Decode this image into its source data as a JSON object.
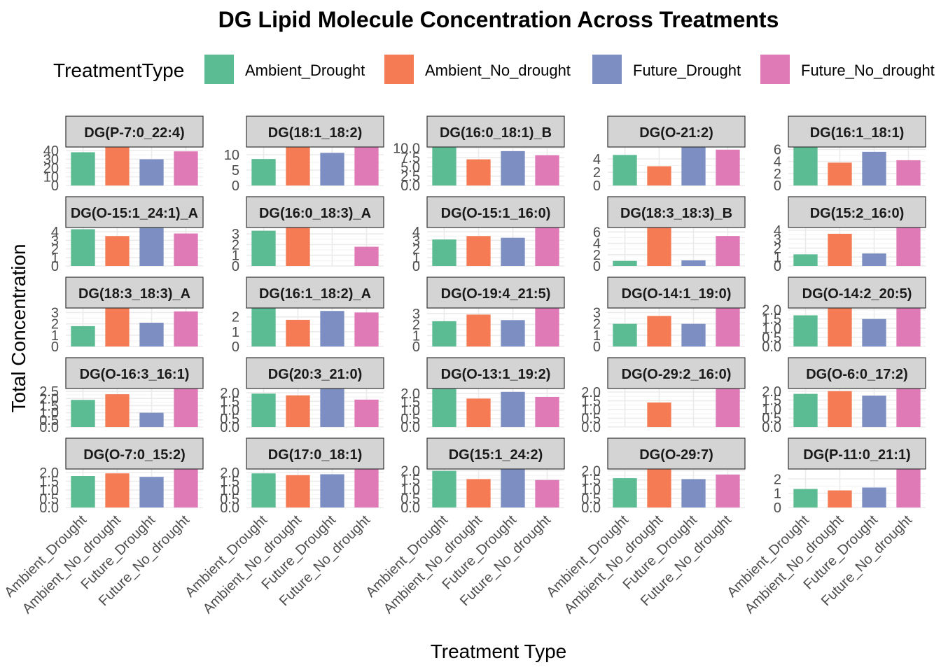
{
  "chart_data": {
    "type": "bar",
    "title": "DG  Lipid Molecule Concentration Across Treatments",
    "xlabel": "Treatment Type",
    "ylabel": "Total Concentration",
    "legend_title": "TreatmentType",
    "legend_position": "top",
    "categories": [
      "Ambient_Drought",
      "Ambient_No_drought",
      "Future_Drought",
      "Future_No_drought"
    ],
    "colors": {
      "Ambient_Drought": "#5bbb93",
      "Ambient_No_drought": "#f57b55",
      "Future_Drought": "#7d8fc2",
      "Future_No_drought": "#e07ab7"
    },
    "strip_fill": "#d4d4d4",
    "facets": [
      {
        "label": "DG(P-7:0_22:4)",
        "values": [
          38,
          44,
          30,
          39
        ],
        "yticks": [
          0,
          10,
          20,
          30,
          40
        ],
        "ytick_labels": [
          "0",
          "10",
          "20",
          "30",
          "40"
        ],
        "ylim": [
          0,
          44
        ]
      },
      {
        "label": "DG(18:1_18:2)",
        "values": [
          8.6,
          12.5,
          10.6,
          12.5
        ],
        "yticks": [
          0,
          5,
          10
        ],
        "ytick_labels": [
          "0",
          "5",
          "10"
        ],
        "ylim": [
          0,
          12.5
        ]
      },
      {
        "label": "DG(16:0_18:1)_B",
        "values": [
          10.3,
          7.0,
          9.2,
          8.1
        ],
        "yticks": [
          0,
          2.5,
          5,
          7.5,
          10
        ],
        "ytick_labels": [
          "0.0",
          "2.5",
          "5.0",
          "7.5",
          "10.0"
        ],
        "ylim": [
          0,
          10.3
        ]
      },
      {
        "label": "DG(O-21:2)",
        "values": [
          4.6,
          2.9,
          5.8,
          5.4
        ],
        "yticks": [
          0,
          2,
          4
        ],
        "ytick_labels": [
          "0",
          "2",
          "4"
        ],
        "ylim": [
          0,
          5.8
        ]
      },
      {
        "label": "DG(16:1_18:1)",
        "values": [
          6.4,
          3.8,
          5.6,
          4.2
        ],
        "yticks": [
          0,
          2,
          4,
          6
        ],
        "ytick_labels": [
          "0",
          "2",
          "4",
          "6"
        ],
        "ylim": [
          0,
          6.4
        ]
      },
      {
        "label": "DG(O-15:1_24:1)_A",
        "values": [
          4.3,
          3.5,
          4.5,
          3.8
        ],
        "yticks": [
          0,
          1,
          2,
          3,
          4
        ],
        "ytick_labels": [
          "0",
          "1",
          "2",
          "3",
          "4"
        ],
        "ylim": [
          0,
          4.5
        ]
      },
      {
        "label": "DG(16:0_18:3)_A",
        "values": [
          3.3,
          3.6,
          0,
          1.8
        ],
        "yticks": [
          0,
          1,
          2,
          3
        ],
        "ytick_labels": [
          "0",
          "1",
          "2",
          "3"
        ],
        "ylim": [
          0,
          3.6
        ]
      },
      {
        "label": "DG(O-15:1_16:0)",
        "values": [
          3.1,
          3.5,
          3.3,
          4.5
        ],
        "yticks": [
          0,
          1,
          2,
          3,
          4
        ],
        "ytick_labels": [
          "0",
          "1",
          "2",
          "3",
          "4"
        ],
        "ylim": [
          0,
          4.5
        ]
      },
      {
        "label": "DG(18:3_18:3)_B",
        "values": [
          0.9,
          6.8,
          1.0,
          5.3
        ],
        "yticks": [
          0,
          2,
          4,
          6
        ],
        "ytick_labels": [
          "0",
          "2",
          "4",
          "6"
        ],
        "ylim": [
          0,
          6.8
        ]
      },
      {
        "label": "DG(15:2_16:0)",
        "values": [
          1.3,
          3.6,
          1.4,
          4.3
        ],
        "yticks": [
          0,
          1,
          2,
          3,
          4
        ],
        "ytick_labels": [
          "0",
          "1",
          "2",
          "3",
          "4"
        ],
        "ylim": [
          0,
          4.3
        ]
      },
      {
        "label": "DG(18:3_18:3)_A",
        "values": [
          1.8,
          3.4,
          2.1,
          3.1
        ],
        "yticks": [
          0,
          1,
          2,
          3
        ],
        "ytick_labels": [
          "0",
          "1",
          "2",
          "3"
        ],
        "ylim": [
          0,
          3.4
        ]
      },
      {
        "label": "DG(16:1_18:2)_A",
        "values": [
          2.6,
          1.8,
          2.4,
          2.3
        ],
        "yticks": [
          0,
          1,
          2
        ],
        "ytick_labels": [
          "0",
          "1",
          "2"
        ],
        "ylim": [
          0,
          2.6
        ]
      },
      {
        "label": "DG(O-19:4_21:5)",
        "values": [
          2.3,
          2.9,
          2.4,
          3.5
        ],
        "yticks": [
          0,
          1,
          2,
          3
        ],
        "ytick_labels": [
          "0",
          "1",
          "2",
          "3"
        ],
        "ylim": [
          0,
          3.5
        ]
      },
      {
        "label": "DG(O-14:1_19:0)",
        "values": [
          2.0,
          2.7,
          2.0,
          3.4
        ],
        "yticks": [
          0,
          1,
          2,
          3
        ],
        "ytick_labels": [
          "0",
          "1",
          "2",
          "3"
        ],
        "ylim": [
          0,
          3.4
        ]
      },
      {
        "label": "DG(O-14:2_20:5)",
        "values": [
          1.7,
          2.1,
          1.5,
          2.1
        ],
        "yticks": [
          0,
          0.5,
          1,
          1.5,
          2
        ],
        "ytick_labels": [
          "0.0",
          "0.5",
          "1.0",
          "1.5",
          "2.0"
        ],
        "ylim": [
          0,
          2.1
        ]
      },
      {
        "label": "DG(O-16:3_16:1)",
        "values": [
          1.9,
          2.3,
          1.0,
          2.7
        ],
        "yticks": [
          0,
          0.5,
          1,
          1.5,
          2,
          2.5
        ],
        "ytick_labels": [
          "0.0",
          "0.5",
          "1.0",
          "1.5",
          "2.0",
          "2.5"
        ],
        "ylim": [
          0,
          2.7
        ]
      },
      {
        "label": "DG(20:3_21:0)",
        "values": [
          1.95,
          1.85,
          2.25,
          1.6
        ],
        "yticks": [
          0,
          0.5,
          1,
          1.5,
          2
        ],
        "ytick_labels": [
          "0.0",
          "0.5",
          "1.0",
          "1.5",
          "2.0"
        ],
        "ylim": [
          0,
          2.25
        ]
      },
      {
        "label": "DG(O-13:1_19:2)",
        "values": [
          2.3,
          1.7,
          2.1,
          1.8
        ],
        "yticks": [
          0,
          0.5,
          1,
          1.5,
          2
        ],
        "ytick_labels": [
          "0.0",
          "0.5",
          "1.0",
          "1.5",
          "2.0"
        ],
        "ylim": [
          0,
          2.3
        ]
      },
      {
        "label": "DG(O-29:2_16:0)",
        "values": [
          0,
          1.4,
          0,
          2.2
        ],
        "yticks": [
          0,
          0.5,
          1,
          1.5,
          2
        ],
        "ytick_labels": [
          "0.0",
          "0.5",
          "1.0",
          "1.5",
          "2.0"
        ],
        "ylim": [
          0,
          2.2
        ]
      },
      {
        "label": "DG(O-6:0_17:2)",
        "values": [
          1.85,
          2.0,
          1.75,
          2.15
        ],
        "yticks": [
          0,
          0.5,
          1,
          1.5,
          2
        ],
        "ytick_labels": [
          "0.0",
          "0.5",
          "1.0",
          "1.5",
          "2.0"
        ],
        "ylim": [
          0,
          2.15
        ]
      },
      {
        "label": "DG(O-7:0_15:2)",
        "values": [
          1.8,
          1.95,
          1.75,
          2.2
        ],
        "yticks": [
          0,
          0.5,
          1,
          1.5,
          2
        ],
        "ytick_labels": [
          "0.0",
          "0.5",
          "1.0",
          "1.5",
          "2.0"
        ],
        "ylim": [
          0,
          2.2
        ]
      },
      {
        "label": "DG(17:0_18:1)",
        "values": [
          1.95,
          1.85,
          1.9,
          2.2
        ],
        "yticks": [
          0,
          0.5,
          1,
          1.5,
          2
        ],
        "ytick_labels": [
          "0.0",
          "0.5",
          "1.0",
          "1.5",
          "2.0"
        ],
        "ylim": [
          0,
          2.2
        ]
      },
      {
        "label": "DG(15:1_24:2)",
        "values": [
          2.0,
          1.55,
          2.1,
          1.5
        ],
        "yticks": [
          0,
          0.5,
          1,
          1.5,
          2
        ],
        "ytick_labels": [
          "0.0",
          "0.5",
          "1.0",
          "1.5",
          "2.0"
        ],
        "ylim": [
          0,
          2.1
        ]
      },
      {
        "label": "DG(O-29:7)",
        "values": [
          1.6,
          2.1,
          1.55,
          1.8
        ],
        "yticks": [
          0,
          0.5,
          1,
          1.5,
          2
        ],
        "ytick_labels": [
          "0.0",
          "0.5",
          "1.0",
          "1.5",
          "2.0"
        ],
        "ylim": [
          0,
          2.1
        ]
      },
      {
        "label": "DG(P-11:0_21:1)",
        "values": [
          1.3,
          1.2,
          1.4,
          2.7
        ],
        "yticks": [
          0,
          1,
          2
        ],
        "ytick_labels": [
          "0",
          "1",
          "2"
        ],
        "ylim": [
          0,
          2.7
        ]
      }
    ]
  }
}
